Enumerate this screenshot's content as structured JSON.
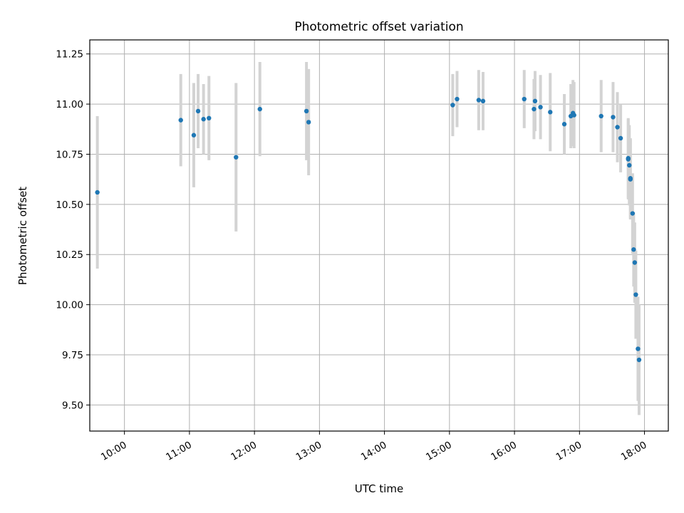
{
  "chart_data": {
    "type": "scatter",
    "title": "Photometric offset variation",
    "xlabel": "UTC time",
    "ylabel": "Photometric offset",
    "x_unit": "UTC time (hours)",
    "xlim": [
      "09:28",
      "18:22"
    ],
    "ylim": [
      9.37,
      11.32
    ],
    "x_ticks": [
      "10:00",
      "11:00",
      "12:00",
      "13:00",
      "14:00",
      "15:00",
      "16:00",
      "17:00",
      "18:00"
    ],
    "y_ticks": [
      "9.50",
      "9.75",
      "10.00",
      "10.25",
      "10.50",
      "10.75",
      "11.00",
      "11.25"
    ],
    "grid": true,
    "error_bar_color": "#d3d3d3",
    "point_color": "#1f77b4",
    "series": [
      {
        "points": [
          {
            "x": "09:35",
            "y": 10.56,
            "err": 0.38
          },
          {
            "x": "10:52",
            "y": 10.92,
            "err": 0.23
          },
          {
            "x": "11:04",
            "y": 10.845,
            "err": 0.26
          },
          {
            "x": "11:08",
            "y": 10.965,
            "err": 0.185
          },
          {
            "x": "11:13",
            "y": 10.925,
            "err": 0.175
          },
          {
            "x": "11:18",
            "y": 10.93,
            "err": 0.21
          },
          {
            "x": "11:43",
            "y": 10.735,
            "err": 0.37
          },
          {
            "x": "12:05",
            "y": 10.975,
            "err": 0.235
          },
          {
            "x": "12:48",
            "y": 10.965,
            "err": 0.245
          },
          {
            "x": "12:50",
            "y": 10.91,
            "err": 0.265
          },
          {
            "x": "15:03",
            "y": 10.995,
            "err": 0.155
          },
          {
            "x": "15:07",
            "y": 11.025,
            "err": 0.14
          },
          {
            "x": "15:27",
            "y": 11.02,
            "err": 0.15
          },
          {
            "x": "15:31",
            "y": 11.015,
            "err": 0.145
          },
          {
            "x": "16:09",
            "y": 11.025,
            "err": 0.145
          },
          {
            "x": "16:18",
            "y": 10.975,
            "err": 0.15
          },
          {
            "x": "16:19",
            "y": 11.015,
            "err": 0.15
          },
          {
            "x": "16:24",
            "y": 10.985,
            "err": 0.16
          },
          {
            "x": "16:33",
            "y": 10.96,
            "err": 0.195
          },
          {
            "x": "16:46",
            "y": 10.9,
            "err": 0.15
          },
          {
            "x": "16:52",
            "y": 10.94,
            "err": 0.16
          },
          {
            "x": "16:54",
            "y": 10.955,
            "err": 0.165
          },
          {
            "x": "16:55",
            "y": 10.945,
            "err": 0.165
          },
          {
            "x": "17:20",
            "y": 10.94,
            "err": 0.18
          },
          {
            "x": "17:31",
            "y": 10.935,
            "err": 0.175
          },
          {
            "x": "17:35",
            "y": 10.885,
            "err": 0.175
          },
          {
            "x": "17:38",
            "y": 10.83,
            "err": 0.17
          },
          {
            "x": "17:45",
            "y": 10.73,
            "err": 0.2
          },
          {
            "x": "17:45",
            "y": 10.725,
            "err": 0.2
          },
          {
            "x": "17:46",
            "y": 10.695,
            "err": 0.2
          },
          {
            "x": "17:47",
            "y": 10.63,
            "err": 0.2
          },
          {
            "x": "17:47",
            "y": 10.625,
            "err": 0.2
          },
          {
            "x": "17:49",
            "y": 10.455,
            "err": 0.2
          },
          {
            "x": "17:50",
            "y": 10.275,
            "err": 0.185
          },
          {
            "x": "17:51",
            "y": 10.21,
            "err": 0.2
          },
          {
            "x": "17:52",
            "y": 10.05,
            "err": 0.22
          },
          {
            "x": "17:54",
            "y": 9.78,
            "err": 0.26
          },
          {
            "x": "17:55",
            "y": 9.725,
            "err": 0.275
          }
        ]
      }
    ]
  }
}
